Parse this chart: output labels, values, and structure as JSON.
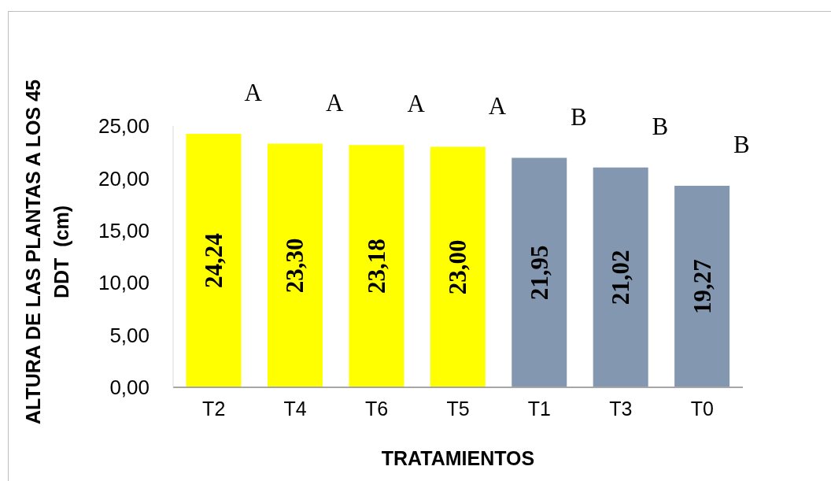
{
  "chart_data": {
    "type": "bar",
    "xlabel": "TRATAMIENTOS",
    "ylabel": "ALTURA DE LAS PLANTAS A LOS 45 DDT  (cm)",
    "categories": [
      "T2",
      "T4",
      "T6",
      "T5",
      "T1",
      "T3",
      "T0"
    ],
    "values": [
      24.24,
      23.3,
      23.18,
      23.0,
      21.95,
      21.02,
      19.27
    ],
    "value_labels": [
      "24,24",
      "23,30",
      "23,18",
      "23,00",
      "21,95",
      "21,02",
      "19,27"
    ],
    "colors": [
      "#ffff00",
      "#ffff00",
      "#ffff00",
      "#ffff00",
      "#8497b0",
      "#8497b0",
      "#8497b0"
    ],
    "ylim": [
      0,
      25
    ],
    "yticks": [
      {
        "value": 0,
        "label": "0,00"
      },
      {
        "value": 5,
        "label": "5,00"
      },
      {
        "value": 10,
        "label": "10,00"
      },
      {
        "value": 15,
        "label": "15,00"
      },
      {
        "value": 20,
        "label": "20,00"
      },
      {
        "value": 25,
        "label": "25,00"
      }
    ],
    "annotations": [
      {
        "text": "A",
        "x": "T2",
        "y": 24.24
      },
      {
        "text": "A",
        "x": "T4",
        "y": 23.3
      },
      {
        "text": "A",
        "x": "T6",
        "y": 23.18
      },
      {
        "text": "A",
        "x": "T5",
        "y": 23.0
      },
      {
        "text": "B",
        "x": "T1",
        "y": 21.95
      },
      {
        "text": "B",
        "x": "T3",
        "y": 21.02
      },
      {
        "text": "B",
        "x": "T0",
        "y": 19.27
      }
    ]
  }
}
